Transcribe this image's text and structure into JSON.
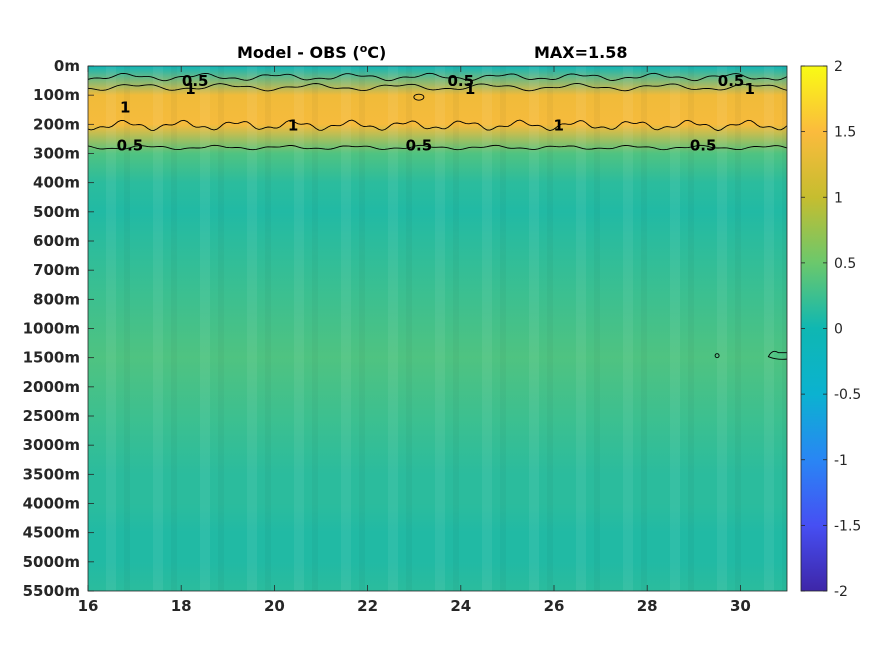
{
  "chart_data": {
    "type": "heatmap",
    "title_left": "Model - OBS (",
    "title_unit_sup": "o",
    "title_unit_end": "C)",
    "title_right": "MAX=1.58",
    "xlabel": "",
    "ylabel": "",
    "x_ticks": [
      "16",
      "18",
      "20",
      "22",
      "24",
      "26",
      "28",
      "30"
    ],
    "x_tick_values": [
      16,
      18,
      20,
      22,
      24,
      26,
      28,
      30
    ],
    "xlim": [
      16,
      31
    ],
    "y_ticks": [
      "0m",
      "100m",
      "200m",
      "300m",
      "400m",
      "500m",
      "600m",
      "700m",
      "800m",
      "1000m",
      "1500m",
      "2000m",
      "2500m",
      "3000m",
      "3500m",
      "4000m",
      "4500m",
      "5000m",
      "5500m"
    ],
    "depth_levels": [
      "0m",
      "100m",
      "200m",
      "300m",
      "400m",
      "500m",
      "600m",
      "700m",
      "800m",
      "1000m",
      "1500m",
      "2000m",
      "2500m",
      "3000m",
      "3500m",
      "4000m",
      "4500m",
      "5000m",
      "5500m"
    ],
    "level_values": [
      -0.1,
      1.4,
      1.45,
      0.35,
      0.15,
      0.1,
      0.15,
      0.2,
      0.25,
      0.3,
      0.35,
      0.3,
      0.25,
      0.2,
      0.15,
      0.15,
      0.1,
      0.1,
      0.15
    ],
    "colorbar": {
      "ticks": [
        "2",
        "1.5",
        "1",
        "0.5",
        "0",
        "-0.5",
        "-1",
        "-1.5",
        "-2"
      ],
      "range": [
        -2,
        2
      ],
      "colormap": "parula"
    },
    "contour_levels": [
      0.5,
      1
    ],
    "contour_labels": [
      {
        "text": "0.5",
        "x": 18.3,
        "depth": "100m"
      },
      {
        "text": "1",
        "x": 18.2,
        "depth": "100m"
      },
      {
        "text": "1",
        "x": 16.8,
        "depth": "200m"
      },
      {
        "text": "1",
        "x": 20.4,
        "depth": "200m"
      },
      {
        "text": "0.5",
        "x": 16.9,
        "depth": "300m"
      },
      {
        "text": "0.5",
        "x": 24.0,
        "depth": "100m"
      },
      {
        "text": "1",
        "x": 24.2,
        "depth": "100m"
      },
      {
        "text": "0.5",
        "x": 23.1,
        "depth": "300m"
      },
      {
        "text": "1",
        "x": 26.1,
        "depth": "200m"
      },
      {
        "text": "0.5",
        "x": 29.8,
        "depth": "100m"
      },
      {
        "text": "1",
        "x": 30.2,
        "depth": "100m"
      },
      {
        "text": "0.5",
        "x": 29.2,
        "depth": "300m"
      }
    ],
    "max_value": 1.58
  }
}
